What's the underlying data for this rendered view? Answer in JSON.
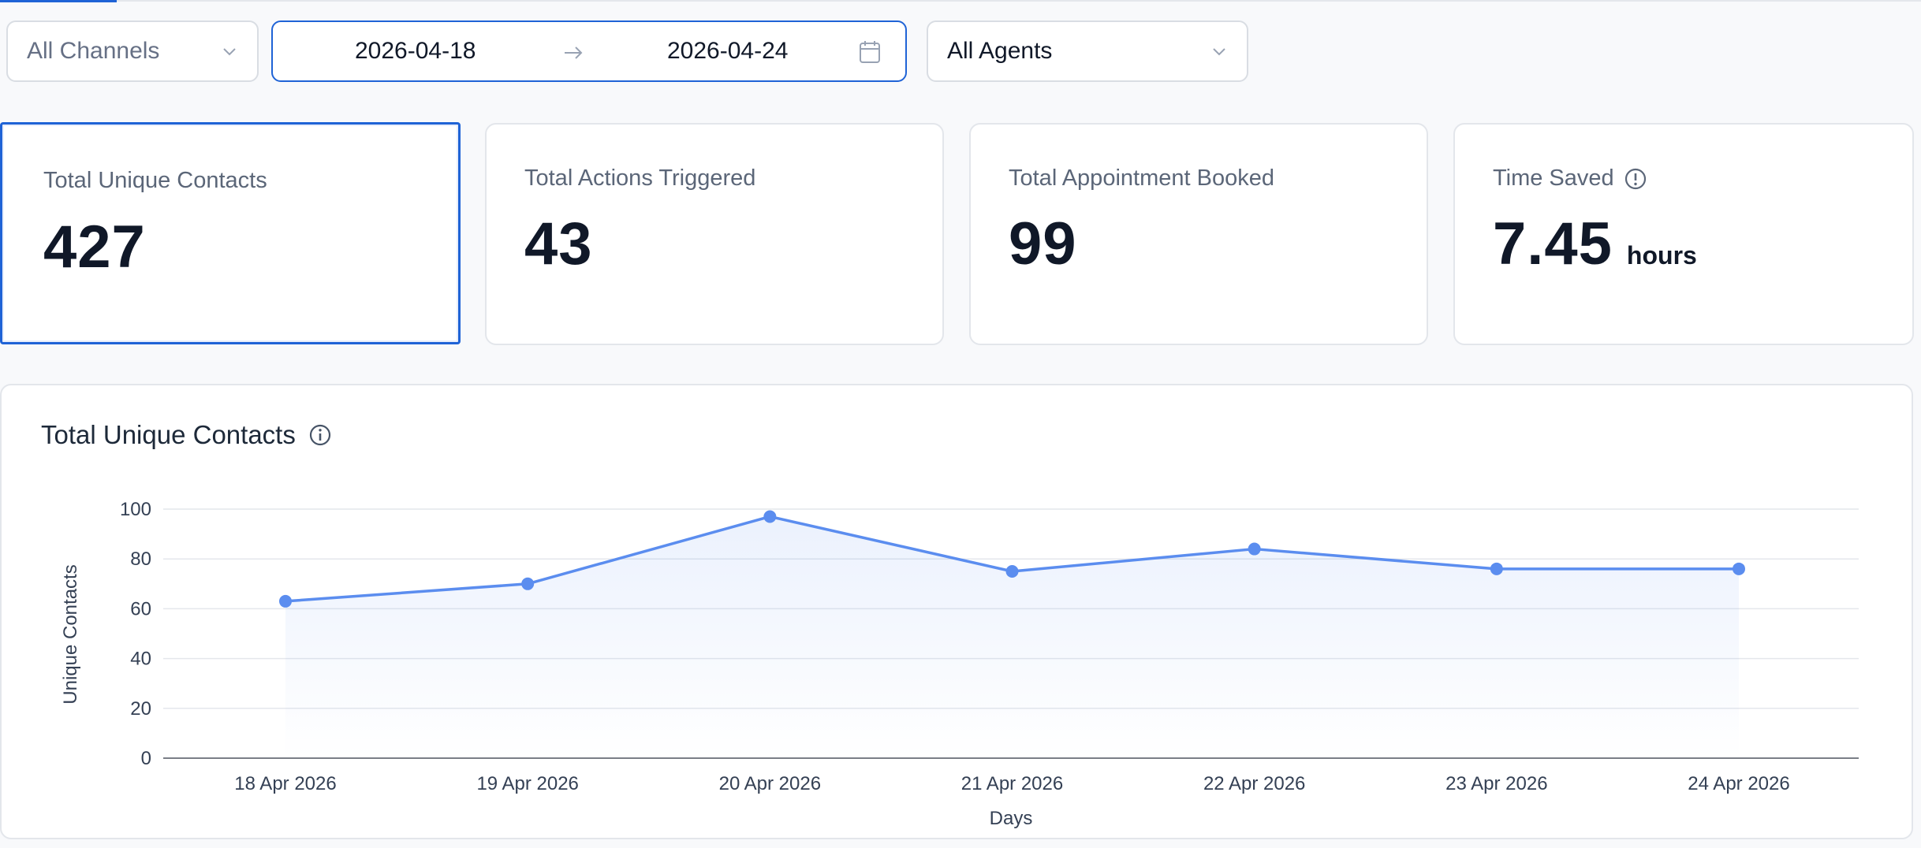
{
  "filters": {
    "channel": "All Channels",
    "date_start": "2026-04-18",
    "date_end": "2026-04-24",
    "agent": "All Agents"
  },
  "metrics": {
    "contacts": {
      "label": "Total Unique Contacts",
      "value": "427"
    },
    "actions": {
      "label": "Total Actions Triggered",
      "value": "43"
    },
    "appointments": {
      "label": "Total Appointment Booked",
      "value": "99"
    },
    "time_saved": {
      "label": "Time Saved",
      "value": "7.45",
      "unit": "hours"
    }
  },
  "chart_title": "Total Unique Contacts",
  "colors": {
    "accent": "#1f63d6",
    "line": "#5b8def"
  },
  "chart_data": {
    "type": "area",
    "x": [
      "18 Apr 2026",
      "19 Apr 2026",
      "20 Apr 2026",
      "21 Apr 2026",
      "22 Apr 2026",
      "23 Apr 2026",
      "24 Apr 2026"
    ],
    "values": [
      63,
      70,
      97,
      75,
      84,
      76,
      76
    ],
    "xlabel": "Days",
    "ylabel": "Unique Contacts",
    "ylim": [
      0,
      100
    ],
    "yticks": [
      0,
      20,
      40,
      60,
      80,
      100
    ],
    "grid": true
  }
}
